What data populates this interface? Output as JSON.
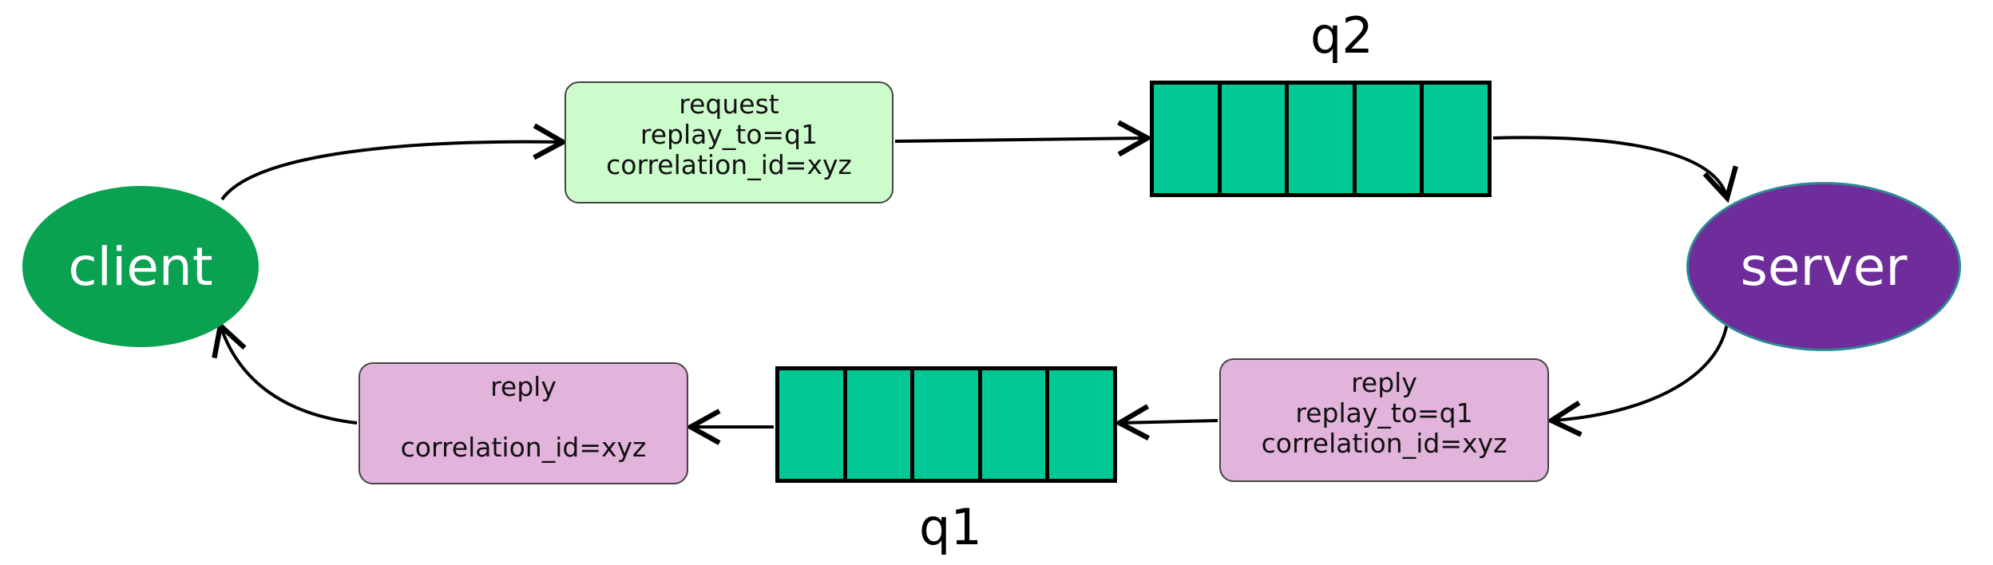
{
  "nodes": {
    "client": {
      "label": "client",
      "color": "#0aa250"
    },
    "server": {
      "label": "server",
      "color": "#6e2d9a"
    }
  },
  "messages": {
    "request": {
      "lines": [
        "request",
        "replay_to=q1",
        "correlation_id=xyz"
      ],
      "color": "#ccfccc"
    },
    "reply_from_server": {
      "lines": [
        "reply",
        "replay_to=q1",
        "correlation_id=xyz"
      ],
      "color": "#e2b3db"
    },
    "reply_to_client": {
      "lines": [
        "reply",
        "",
        "correlation_id=xyz"
      ],
      "color": "#e2b3db"
    }
  },
  "queues": {
    "q2": {
      "label": "q2",
      "cells": 5,
      "color": "#02c896"
    },
    "q1": {
      "label": "q1",
      "cells": 5,
      "color": "#02c896"
    }
  },
  "edges": [
    {
      "from": "client",
      "to": "request"
    },
    {
      "from": "request",
      "to": "q2"
    },
    {
      "from": "q2",
      "to": "server"
    },
    {
      "from": "server",
      "to": "reply_from_server"
    },
    {
      "from": "reply_from_server",
      "to": "q1"
    },
    {
      "from": "q1",
      "to": "reply_to_client"
    },
    {
      "from": "reply_to_client",
      "to": "client"
    }
  ]
}
